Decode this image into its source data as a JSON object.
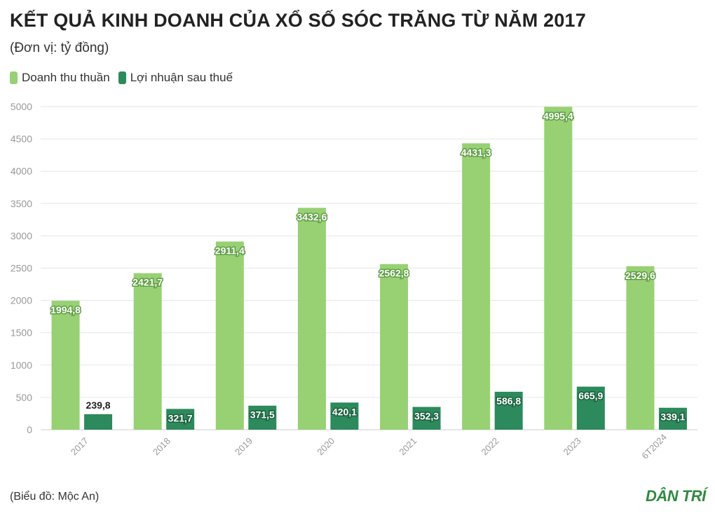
{
  "title": "KẾT QUẢ KINH DOANH CỦA XỔ SỐ SÓC TRĂNG TỪ NĂM 2017",
  "subtitle": "(Đơn vị: tỷ đồng)",
  "source": "(Biểu đồ: Mộc An)",
  "logo": "DÂN TRÍ",
  "colors": {
    "revenue": "#97d173",
    "profit": "#2c8a5c",
    "grid": "#e6e6e6",
    "axis_text": "#999999"
  },
  "chart_data": {
    "type": "bar",
    "categories": [
      "2017",
      "2018",
      "2019",
      "2020",
      "2021",
      "2022",
      "2023",
      "6T2024"
    ],
    "series": [
      {
        "name": "Doanh thu thuần",
        "values": [
          1994.8,
          2421.7,
          2911.4,
          3432.6,
          2562.8,
          4431.3,
          4995.4,
          2529.6
        ],
        "labels": [
          "1994,8",
          "2421,7",
          "2911,4",
          "3432,6",
          "2562,8",
          "4431,3",
          "4995,4",
          "2529,6"
        ]
      },
      {
        "name": "Lợi nhuận sau thuế",
        "values": [
          239.8,
          321.7,
          371.5,
          420.1,
          352.3,
          586.8,
          665.9,
          339.1
        ],
        "labels": [
          "239,8",
          "321,7",
          "371,5",
          "420,1",
          "352,3",
          "586,8",
          "665,9",
          "339,1"
        ]
      }
    ],
    "ylim": [
      0,
      5000
    ],
    "yticks": [
      0,
      500,
      1000,
      1500,
      2000,
      2500,
      3000,
      3500,
      4000,
      4500,
      5000
    ],
    "grid": true,
    "legend": "top-left"
  }
}
